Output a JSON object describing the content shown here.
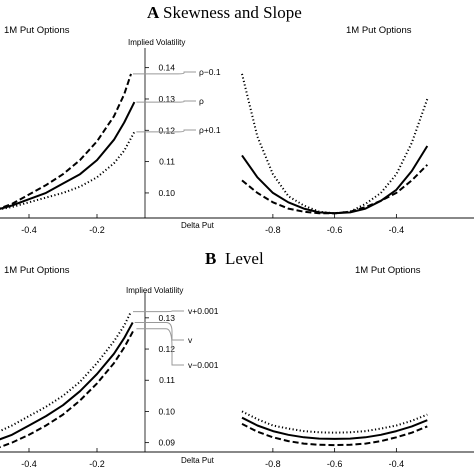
{
  "sections": [
    {
      "letter": "A",
      "title": "Skewness and Slope",
      "left_panel_title": "1M Put Options",
      "right_panel_title": "1M Put Options",
      "yaxis_label": "Implied Volatility",
      "xaxis_label": "Delta Put",
      "curve_labels": [
        "ρ−0.1",
        "ρ",
        "ρ+0.1"
      ]
    },
    {
      "letter": "B",
      "title": "Level",
      "left_panel_title": "1M Put Options",
      "right_panel_title": "1M Put Options",
      "yaxis_label": "Implied Volatility",
      "xaxis_label": "Delta Put",
      "curve_labels": [
        "v+0.001",
        "v",
        "v−0.001"
      ]
    }
  ],
  "chart_data": [
    {
      "type": "line",
      "title": "1M Put Options",
      "xlabel": "Delta Put",
      "ylabel": "Implied Volatility",
      "xlim": [
        -0.5,
        -0.05
      ],
      "ylim": [
        0.092,
        0.145
      ],
      "xticks": [
        "-0.4",
        "-0.2"
      ],
      "yticks": [
        "0.10",
        "0.11",
        "0.12",
        "0.13",
        "0.14"
      ],
      "series": [
        {
          "name": "ρ−0.1",
          "style": "dashed",
          "x": [
            -0.5,
            -0.45,
            -0.4,
            -0.35,
            -0.3,
            -0.25,
            -0.2,
            -0.15,
            -0.12,
            -0.1
          ],
          "y": [
            0.0945,
            0.0965,
            0.0995,
            0.1025,
            0.106,
            0.1105,
            0.1165,
            0.1245,
            0.1315,
            0.138
          ]
        },
        {
          "name": "ρ",
          "style": "solid",
          "x": [
            -0.5,
            -0.45,
            -0.4,
            -0.35,
            -0.3,
            -0.25,
            -0.2,
            -0.15,
            -0.12,
            -0.09
          ],
          "y": [
            0.0945,
            0.096,
            0.098,
            0.1,
            0.103,
            0.106,
            0.1105,
            0.117,
            0.1225,
            0.129
          ]
        },
        {
          "name": "ρ+0.1",
          "style": "dotted",
          "x": [
            -0.5,
            -0.45,
            -0.4,
            -0.35,
            -0.3,
            -0.25,
            -0.2,
            -0.15,
            -0.12,
            -0.09
          ],
          "y": [
            0.0945,
            0.0955,
            0.097,
            0.0985,
            0.1,
            0.102,
            0.105,
            0.1095,
            0.1135,
            0.1195
          ]
        }
      ]
    },
    {
      "type": "line",
      "title": "1M Put Options",
      "xlabel": "Delta Put",
      "xlim": [
        -0.9,
        -0.1
      ],
      "xticks": [
        "-0.8",
        "-0.6",
        "-0.4"
      ],
      "series": [
        {
          "name": "ρ−0.1",
          "style": "dashed",
          "x": [
            -0.9,
            -0.85,
            -0.8,
            -0.75,
            -0.7,
            -0.65,
            -0.6,
            -0.55,
            -0.5,
            -0.45,
            -0.4,
            -0.35,
            -0.3
          ],
          "y": [
            0.104,
            0.1,
            0.097,
            0.095,
            0.094,
            0.0935,
            0.0935,
            0.094,
            0.0955,
            0.0975,
            0.1,
            0.104,
            0.109
          ]
        },
        {
          "name": "ρ",
          "style": "solid",
          "x": [
            -0.9,
            -0.85,
            -0.8,
            -0.75,
            -0.7,
            -0.65,
            -0.6,
            -0.55,
            -0.5,
            -0.45,
            -0.4,
            -0.35,
            -0.3
          ],
          "y": [
            0.112,
            0.105,
            0.1,
            0.097,
            0.095,
            0.0938,
            0.0935,
            0.0938,
            0.095,
            0.0975,
            0.101,
            0.107,
            0.115
          ]
        },
        {
          "name": "ρ+0.1",
          "style": "dotted",
          "x": [
            -0.9,
            -0.85,
            -0.8,
            -0.75,
            -0.7,
            -0.65,
            -0.6,
            -0.55,
            -0.5,
            -0.45,
            -0.4,
            -0.35,
            -0.3
          ],
          "y": [
            0.138,
            0.118,
            0.106,
            0.099,
            0.096,
            0.094,
            0.0935,
            0.094,
            0.0965,
            0.1,
            0.106,
            0.116,
            0.13
          ]
        }
      ]
    },
    {
      "type": "line",
      "title": "1M Put Options",
      "xlabel": "Delta Put",
      "ylabel": "Implied Volatility",
      "xlim": [
        -0.5,
        -0.05
      ],
      "ylim": [
        0.087,
        0.137
      ],
      "xticks": [
        "-0.4",
        "-0.2"
      ],
      "yticks": [
        "0.09",
        "0.10",
        "0.11",
        "0.12",
        "0.13"
      ],
      "series": [
        {
          "name": "v+0.001",
          "style": "dotted",
          "x": [
            -0.5,
            -0.45,
            -0.4,
            -0.35,
            -0.3,
            -0.25,
            -0.2,
            -0.15,
            -0.12,
            -0.1
          ],
          "y": [
            0.093,
            0.0955,
            0.0985,
            0.1015,
            0.105,
            0.1095,
            0.1155,
            0.1225,
            0.1275,
            0.132
          ]
        },
        {
          "name": "v",
          "style": "solid",
          "x": [
            -0.5,
            -0.45,
            -0.4,
            -0.35,
            -0.3,
            -0.25,
            -0.2,
            -0.15,
            -0.12,
            -0.095
          ],
          "y": [
            0.0905,
            0.0925,
            0.0955,
            0.0985,
            0.102,
            0.1065,
            0.112,
            0.1185,
            0.1235,
            0.1285
          ]
        },
        {
          "name": "v−0.001",
          "style": "dashed",
          "x": [
            -0.5,
            -0.45,
            -0.4,
            -0.35,
            -0.3,
            -0.25,
            -0.2,
            -0.15,
            -0.12,
            -0.09
          ],
          "y": [
            0.088,
            0.09,
            0.0925,
            0.0955,
            0.099,
            0.1035,
            0.109,
            0.1155,
            0.1205,
            0.1265
          ]
        }
      ]
    },
    {
      "type": "line",
      "title": "1M Put Options",
      "xlabel": "Delta Put",
      "xlim": [
        -0.9,
        -0.1
      ],
      "xticks": [
        "-0.8",
        "-0.6",
        "-0.4"
      ],
      "series": [
        {
          "name": "v+0.001",
          "style": "dotted",
          "x": [
            -0.9,
            -0.85,
            -0.8,
            -0.75,
            -0.7,
            -0.65,
            -0.6,
            -0.55,
            -0.5,
            -0.45,
            -0.4,
            -0.35,
            -0.3
          ],
          "y": [
            0.1,
            0.0975,
            0.0955,
            0.0945,
            0.0937,
            0.0933,
            0.0932,
            0.0933,
            0.0937,
            0.0945,
            0.0955,
            0.097,
            0.099
          ]
        },
        {
          "name": "v",
          "style": "solid",
          "x": [
            -0.9,
            -0.85,
            -0.8,
            -0.75,
            -0.7,
            -0.65,
            -0.6,
            -0.55,
            -0.5,
            -0.45,
            -0.4,
            -0.35,
            -0.3
          ],
          "y": [
            0.098,
            0.0955,
            0.0937,
            0.0925,
            0.0917,
            0.0913,
            0.0912,
            0.0913,
            0.0917,
            0.0925,
            0.0937,
            0.0952,
            0.0972
          ]
        },
        {
          "name": "v−0.001",
          "style": "dashed",
          "x": [
            -0.9,
            -0.85,
            -0.8,
            -0.75,
            -0.7,
            -0.65,
            -0.6,
            -0.55,
            -0.5,
            -0.45,
            -0.4,
            -0.35,
            -0.3
          ],
          "y": [
            0.096,
            0.0935,
            0.0917,
            0.0905,
            0.0897,
            0.0893,
            0.0892,
            0.0893,
            0.0897,
            0.0905,
            0.0917,
            0.0932,
            0.0952
          ]
        }
      ]
    }
  ]
}
